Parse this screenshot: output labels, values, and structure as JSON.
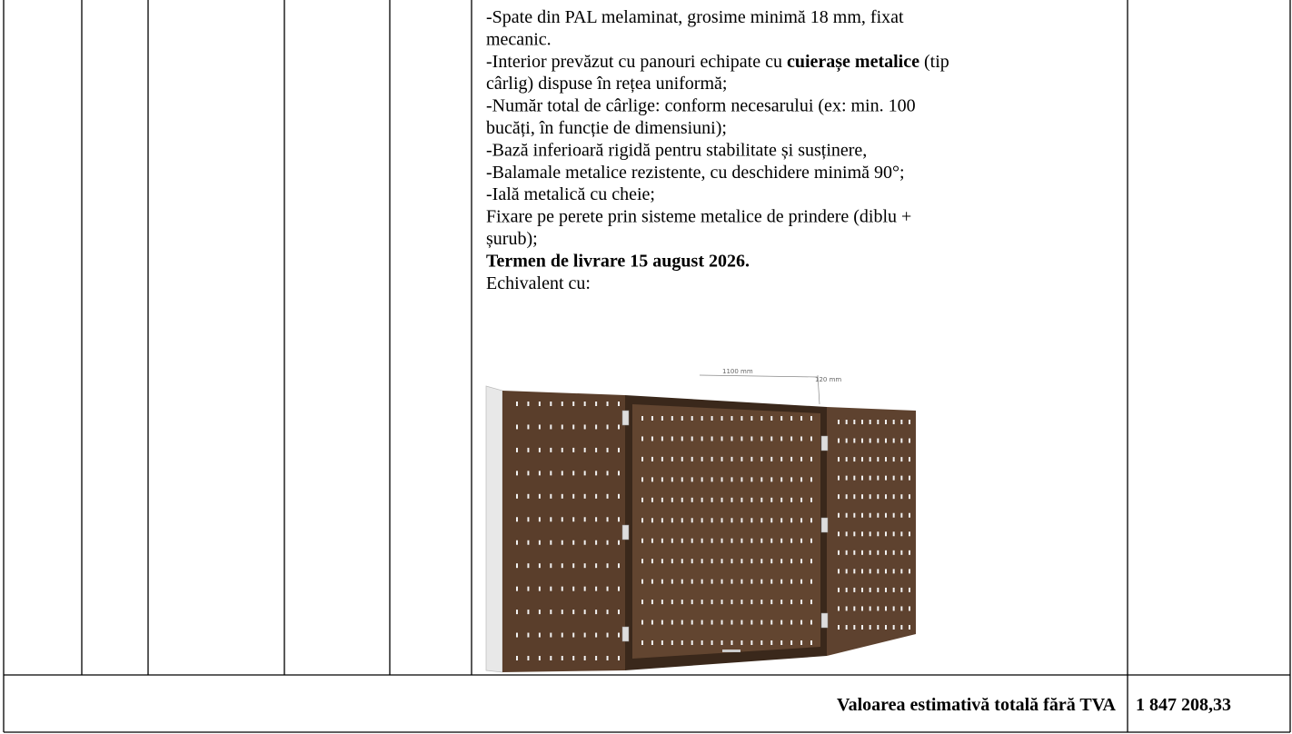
{
  "description": {
    "lines": [
      [
        {
          "text": "-Spate din PAL melaminat, grosime minimă 18 mm, fixat"
        }
      ],
      [
        {
          "text": "mecanic."
        }
      ],
      [
        {
          "text": "-Interior prevăzut cu panouri echipate cu "
        },
        {
          "text": "cuierașe metalice",
          "bold": true
        },
        {
          "text": " (tip"
        }
      ],
      [
        {
          "text": "cârlig) dispuse în rețea uniformă;"
        }
      ],
      [
        {
          "text": "-Număr total de cârlige: conform necesarului (ex: min. 100"
        }
      ],
      [
        {
          "text": "bucăți, în funcție de dimensiuni);"
        }
      ],
      [
        {
          "text": "-Bază inferioară rigidă pentru stabilitate și susținere,"
        }
      ],
      [
        {
          "text": "-Balamale metalice rezistente, cu deschidere minimă 90°;"
        }
      ],
      [
        {
          "text": "-Ială metalică cu cheie;"
        }
      ],
      [
        {
          "text": "Fixare pe perete prin sisteme metalice de prindere (diblu +"
        }
      ],
      [
        {
          "text": "șurub);"
        }
      ],
      [
        {
          "text": "Termen de livrare 15 august 2026.",
          "bold": true
        }
      ],
      [
        {
          "text": "Echivalent cu:"
        }
      ]
    ],
    "image": {
      "dimension_width": "1100 mm",
      "dimension_depth": "120 mm"
    }
  },
  "total": {
    "label": "Valoarea estimativă totală fără TVA",
    "value": "1 847 208,33"
  }
}
